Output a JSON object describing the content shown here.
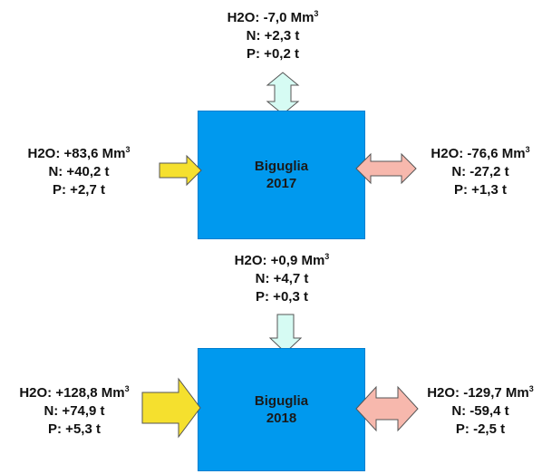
{
  "blocks": [
    {
      "box": {
        "name": "Biguglia",
        "year": "2017"
      },
      "top": {
        "h2o": "H2O: -7,0 Mm",
        "n": "N: +2,3 t",
        "p": "P: +0,2 t"
      },
      "left": {
        "h2o": "H2O: +83,6 Mm",
        "n": "N: +40,2 t",
        "p": "P: +2,7 t"
      },
      "right": {
        "h2o": "H2O: -76,6 Mm",
        "n": "N: -27,2 t",
        "p": "P: +1,3 t"
      }
    },
    {
      "box": {
        "name": "Biguglia",
        "year": "2018"
      },
      "top": {
        "h2o": "H2O: +0,9 Mm",
        "n": "N: +4,7 t",
        "p": "P: +0,3 t"
      },
      "left": {
        "h2o": "H2O: +128,8 Mm",
        "n": "N: +74,9 t",
        "p": "P: +5,3 t"
      },
      "right": {
        "h2o": "H2O: -129,7 Mm",
        "n": "N: -59,4 t",
        "p": "P: -2,5 t"
      }
    }
  ],
  "unit_exponent": "3",
  "colors": {
    "box": "#0099ee",
    "inflow_arrow": "#f5e02e",
    "outflow_arrow": "#f7b8ad",
    "exchange_arrow": "#d6fbf3"
  }
}
